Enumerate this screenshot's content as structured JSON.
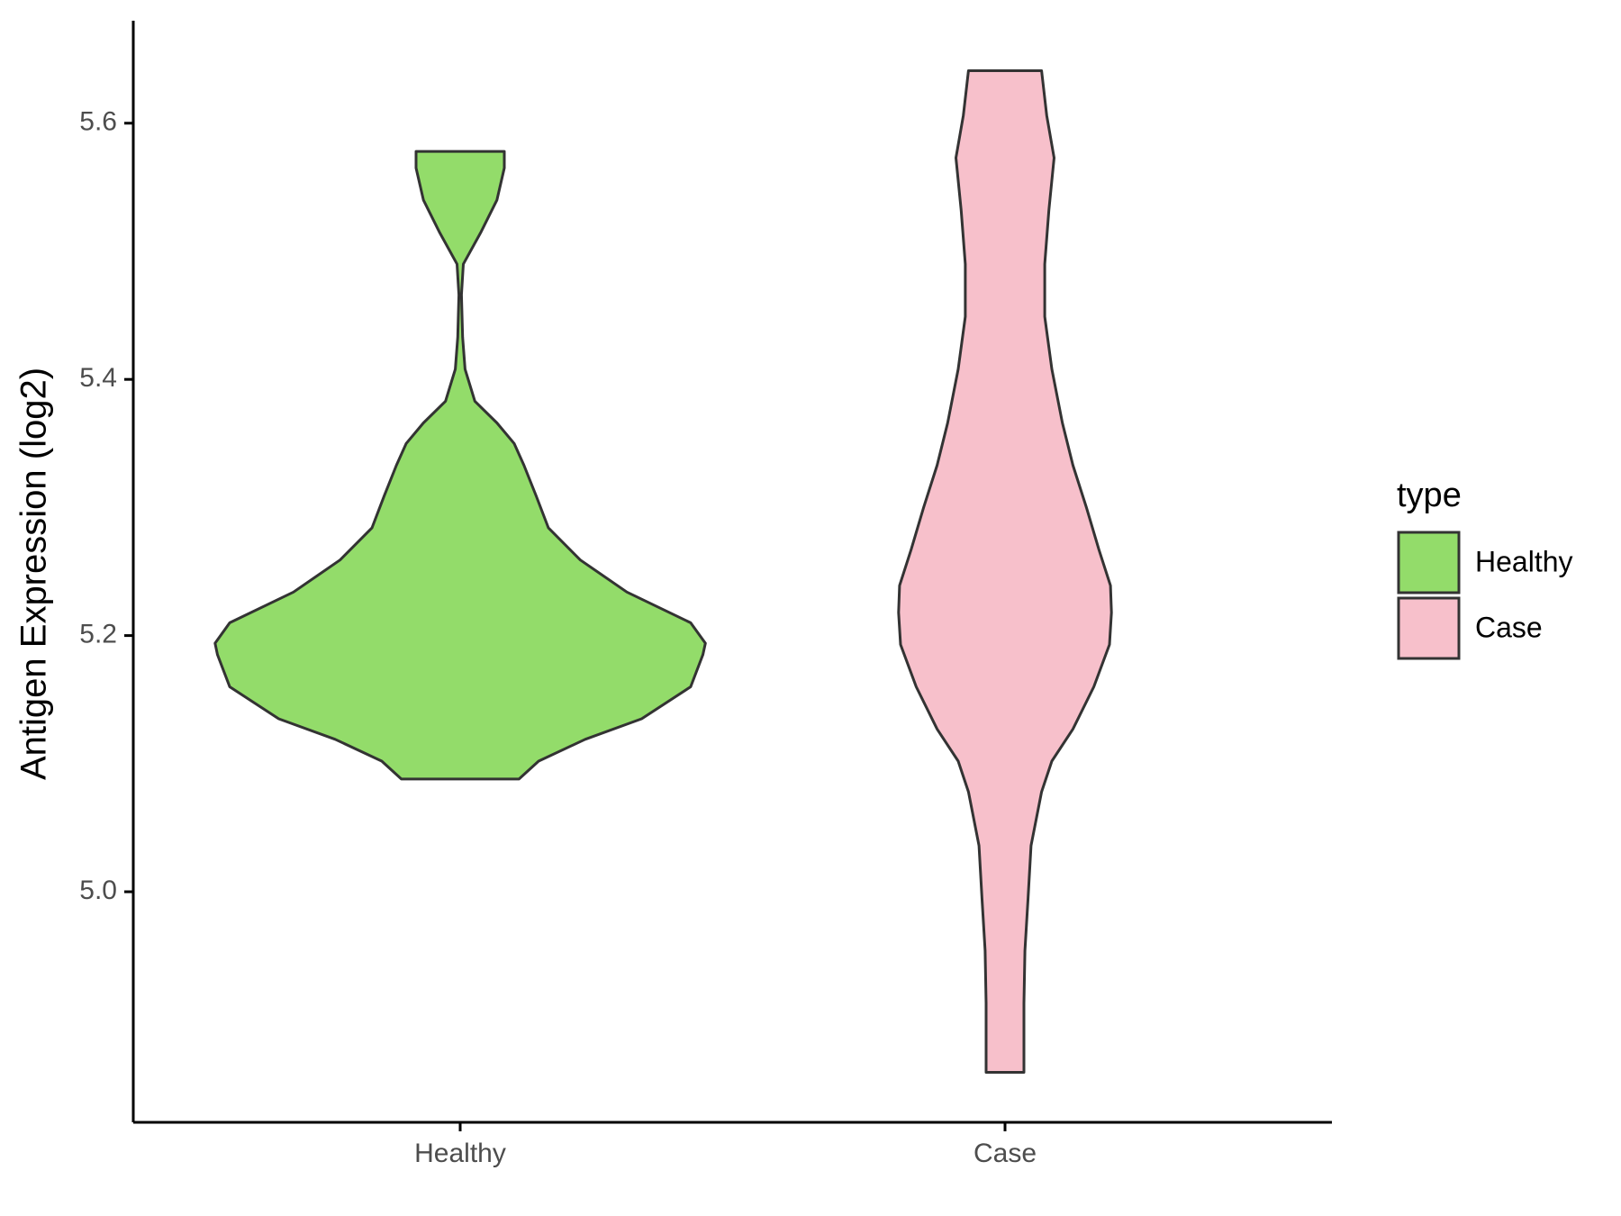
{
  "chart_data": {
    "type": "violin",
    "y_label": "Antigen Expression (log2)",
    "categories": [
      "Healthy",
      "Case"
    ],
    "legend_title": "type",
    "legend_position": "right",
    "ylim": [
      4.82,
      5.68
    ],
    "yticks": [
      {
        "value": 5.0,
        "label": "5.0"
      },
      {
        "value": 5.2,
        "label": "5.2"
      },
      {
        "value": 5.4,
        "label": "5.4"
      },
      {
        "value": 5.6,
        "label": "5.6"
      }
    ],
    "series": [
      {
        "name": "Healthy",
        "color": "#93dc6a",
        "y": [
          5.088,
          5.102,
          5.119,
          5.135,
          5.16,
          5.185,
          5.194,
          5.21,
          5.234,
          5.259,
          5.284,
          5.309,
          5.333,
          5.35,
          5.366,
          5.383,
          5.408,
          5.433,
          5.466,
          5.49,
          5.515,
          5.54,
          5.565,
          5.578
        ],
        "density": [
          0.24,
          0.32,
          0.51,
          0.74,
          0.94,
          0.99,
          1.0,
          0.94,
          0.68,
          0.49,
          0.36,
          0.31,
          0.26,
          0.22,
          0.15,
          0.06,
          0.02,
          0.01,
          0.005,
          0.013,
          0.085,
          0.15,
          0.18,
          0.18
        ]
      },
      {
        "name": "Case",
        "color": "#f7c0cb",
        "y": [
          4.859,
          4.913,
          4.954,
          4.995,
          5.036,
          5.078,
          5.102,
          5.127,
          5.16,
          5.193,
          5.218,
          5.239,
          5.267,
          5.3,
          5.333,
          5.366,
          5.408,
          5.449,
          5.49,
          5.532,
          5.573,
          5.606,
          5.641
        ],
        "density": [
          0.077,
          0.077,
          0.081,
          0.094,
          0.106,
          0.149,
          0.191,
          0.277,
          0.362,
          0.426,
          0.434,
          0.43,
          0.383,
          0.332,
          0.277,
          0.234,
          0.191,
          0.162,
          0.162,
          0.179,
          0.2,
          0.17,
          0.149
        ]
      }
    ]
  }
}
